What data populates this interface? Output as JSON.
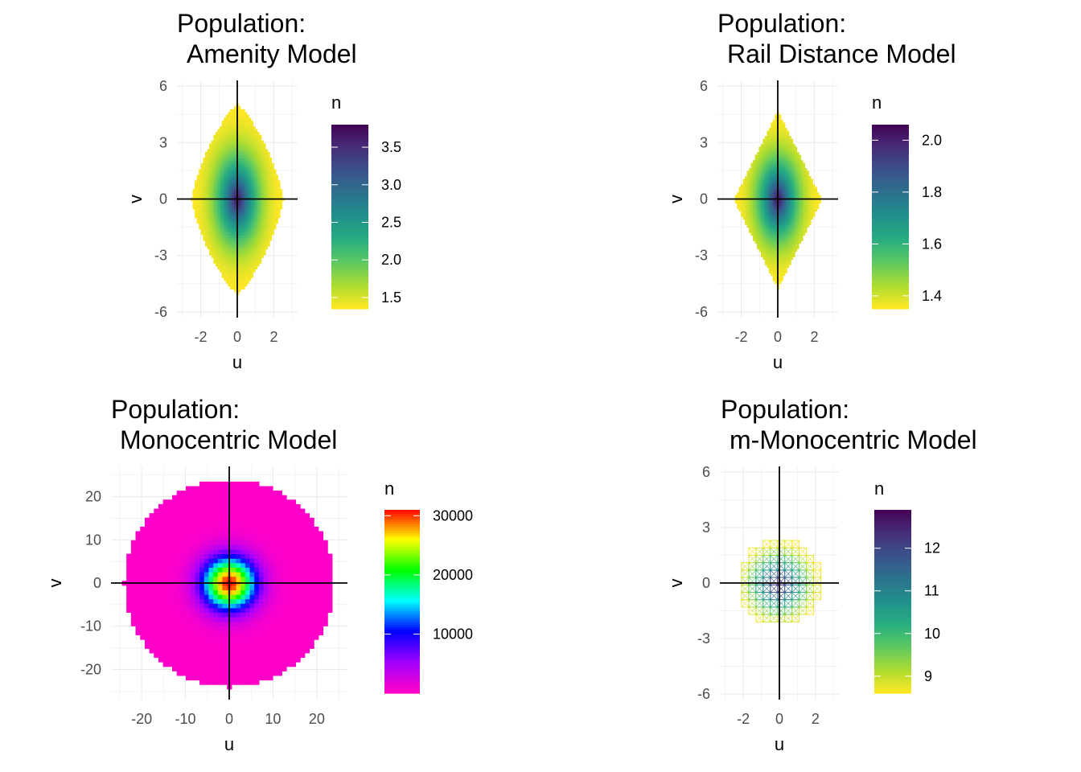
{
  "chart_data": [
    {
      "type": "heatmap",
      "title_lines": [
        "Population:",
        " Amenity Model"
      ],
      "xlabel": "u",
      "ylabel": "v",
      "xlim": [
        -3.3,
        3.3
      ],
      "ylim": [
        -6.3,
        6.3
      ],
      "x_ticks": [
        -2,
        0,
        2
      ],
      "y_ticks": [
        -6,
        -3,
        0,
        3,
        6
      ],
      "grid": true,
      "crosshair": true,
      "shape": "rhombus",
      "extent": {
        "u_max": 2.5,
        "v_max": 5.0
      },
      "palette": "viridis",
      "legend": {
        "title": "n",
        "position": "right",
        "ticks": [
          1.5,
          2.0,
          2.5,
          3.0,
          3.5
        ],
        "tick_labels": [
          "1.5",
          "2.0",
          "2.5",
          "3.0",
          "3.5"
        ],
        "min": 1.35,
        "max": 3.8
      }
    },
    {
      "type": "heatmap",
      "title_lines": [
        "Population:",
        " Rail Distance Model"
      ],
      "xlabel": "u",
      "ylabel": "v",
      "xlim": [
        -3.3,
        3.3
      ],
      "ylim": [
        -6.3,
        6.3
      ],
      "x_ticks": [
        -2,
        0,
        2
      ],
      "y_ticks": [
        -6,
        -3,
        0,
        3,
        6
      ],
      "grid": true,
      "crosshair": true,
      "shape": "diamond",
      "extent": {
        "u_max": 2.4,
        "v_max": 4.7
      },
      "palette": "viridis",
      "legend": {
        "title": "n",
        "position": "right",
        "ticks": [
          1.4,
          1.6,
          1.8,
          2.0
        ],
        "tick_labels": [
          "1.4",
          "1.6",
          "1.8",
          "2.0"
        ],
        "min": 1.35,
        "max": 2.06
      }
    },
    {
      "type": "heatmap",
      "title_lines": [
        "Population:",
        " Monocentric Model"
      ],
      "xlabel": "u",
      "ylabel": "v",
      "xlim": [
        -27,
        27
      ],
      "ylim": [
        -27,
        27
      ],
      "x_ticks": [
        -20,
        -10,
        0,
        10,
        20
      ],
      "y_ticks": [
        -20,
        -10,
        0,
        10,
        20
      ],
      "grid": true,
      "crosshair": true,
      "shape": "disc",
      "extent": {
        "radius": 24
      },
      "palette": "rainbow",
      "legend": {
        "title": "n",
        "position": "right",
        "ticks": [
          10000,
          20000,
          30000
        ],
        "tick_labels": [
          "10000",
          "20000",
          "30000"
        ],
        "min": 0,
        "max": 31000
      }
    },
    {
      "type": "heatmap",
      "title_lines": [
        "Population:",
        " m-Monocentric Model"
      ],
      "xlabel": "u",
      "ylabel": "v",
      "xlim": [
        -3.3,
        3.3
      ],
      "ylim": [
        -6.3,
        6.3
      ],
      "x_ticks": [
        -2,
        0,
        2
      ],
      "y_ticks": [
        -6,
        -3,
        0,
        3,
        6
      ],
      "grid": true,
      "crosshair": true,
      "shape": "disc-outline",
      "extent": {
        "radius": 2.3
      },
      "palette": "viridis",
      "legend": {
        "title": "n",
        "position": "right",
        "ticks": [
          9,
          10,
          11,
          12
        ],
        "tick_labels": [
          "9",
          "10",
          "11",
          "12"
        ],
        "min": 8.6,
        "max": 12.9
      }
    }
  ]
}
